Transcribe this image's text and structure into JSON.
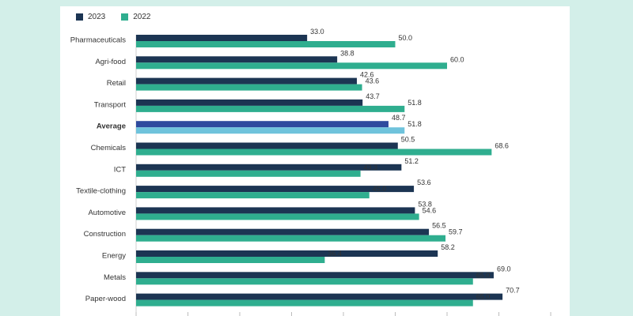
{
  "chart_data": {
    "type": "bar",
    "orientation": "horizontal",
    "categories": [
      "Pharmaceuticals",
      "Agri-food",
      "Retail",
      "Transport",
      "Average",
      "Chemicals",
      "ICT",
      "Textile-clothing",
      "Automotive",
      "Construction",
      "Energy",
      "Metals",
      "Paper-wood"
    ],
    "highlight_category": "Average",
    "series": [
      {
        "name": "2023",
        "color": "#1c3553",
        "highlight_color": "#2e4a9e",
        "values": [
          33.0,
          38.8,
          42.6,
          43.7,
          48.7,
          50.5,
          51.2,
          53.6,
          53.8,
          56.5,
          58.2,
          69.0,
          70.7
        ]
      },
      {
        "name": "2022",
        "color": "#2fae8f",
        "highlight_color": "#6fc3dc",
        "values": [
          50.0,
          60.0,
          43.6,
          51.8,
          51.8,
          68.6,
          43.3,
          45.0,
          54.6,
          59.7,
          36.4,
          65.0,
          65.0
        ]
      }
    ],
    "xlim": [
      0,
      80
    ],
    "legend_position": "top-left"
  }
}
